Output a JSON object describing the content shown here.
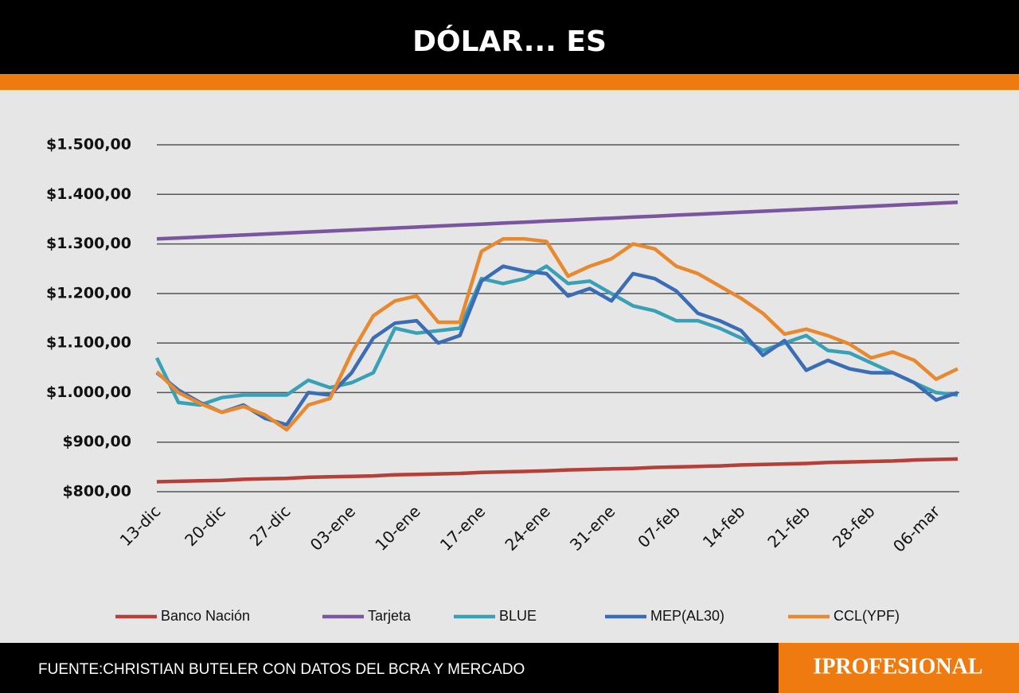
{
  "chart_data": {
    "type": "line",
    "title": "DÓLAR... ES",
    "source": "FUENTE:CHRISTIAN BUTELER CON DATOS DEL BCRA Y MERCADO",
    "brand": "IPROFESIONAL",
    "categories": [
      "13-dic",
      null,
      null,
      "20-dic",
      null,
      null,
      "27-dic",
      null,
      null,
      "03-ene",
      null,
      null,
      "10-ene",
      null,
      null,
      "17-ene",
      null,
      null,
      "24-ene",
      null,
      null,
      "31-ene",
      null,
      null,
      "07-feb",
      null,
      null,
      "14-feb",
      null,
      null,
      "21-feb",
      null,
      null,
      "28-feb",
      null,
      null,
      "06-mar",
      null
    ],
    "ylim": [
      800,
      1500
    ],
    "yticks": [
      {
        "value": 800,
        "label": "$800,00"
      },
      {
        "value": 900,
        "label": "$900,00"
      },
      {
        "value": 1000,
        "label": "$1.000,00"
      },
      {
        "value": 1100,
        "label": "$1.100,00"
      },
      {
        "value": 1200,
        "label": "$1.200,00"
      },
      {
        "value": 1300,
        "label": "$1.300,00"
      },
      {
        "value": 1400,
        "label": "$1.400,00"
      },
      {
        "value": 1500,
        "label": "$1.500,00"
      }
    ],
    "grid": true,
    "series": [
      {
        "name": "Banco Nación",
        "color": "#b5403a",
        "values": [
          820,
          821,
          822,
          823,
          825,
          826,
          827,
          829,
          830,
          831,
          832,
          834,
          835,
          836,
          837,
          839,
          840,
          841,
          842,
          844,
          845,
          846,
          847,
          849,
          850,
          851,
          852,
          854,
          855,
          856,
          857,
          859,
          860,
          861,
          862,
          864,
          865,
          866
        ]
      },
      {
        "name": "Tarjeta",
        "color": "#7b559f",
        "values": [
          1310,
          1312,
          1314,
          1316,
          1318,
          1320,
          1322,
          1324,
          1326,
          1328,
          1330,
          1332,
          1334,
          1336,
          1338,
          1340,
          1342,
          1344,
          1346,
          1348,
          1350,
          1352,
          1354,
          1356,
          1358,
          1360,
          1362,
          1364,
          1366,
          1368,
          1370,
          1372,
          1374,
          1376,
          1378,
          1380,
          1382,
          1384
        ]
      },
      {
        "name": "BLUE",
        "color": "#3aa0b5",
        "values": [
          1070,
          980,
          975,
          990,
          995,
          995,
          995,
          1025,
          1010,
          1020,
          1040,
          1130,
          1120,
          1125,
          1130,
          1230,
          1220,
          1230,
          1255,
          1220,
          1225,
          1200,
          1175,
          1165,
          1145,
          1145,
          1130,
          1110,
          1085,
          1100,
          1115,
          1085,
          1080,
          1060,
          1040,
          1020,
          1000,
          995
        ]
      },
      {
        "name": "MEP(AL30)",
        "color": "#3a6db5",
        "values": [
          1040,
          1005,
          980,
          960,
          975,
          948,
          935,
          1000,
          995,
          1040,
          1110,
          1140,
          1145,
          1100,
          1115,
          1225,
          1255,
          1245,
          1240,
          1195,
          1210,
          1185,
          1240,
          1230,
          1205,
          1160,
          1145,
          1125,
          1075,
          1105,
          1045,
          1065,
          1048,
          1040,
          1040,
          1020,
          985,
          1000
        ]
      },
      {
        "name": "CCL(YPF)",
        "color": "#e8892f",
        "values": [
          1042,
          1000,
          978,
          960,
          972,
          955,
          925,
          975,
          988,
          1080,
          1155,
          1185,
          1195,
          1142,
          1142,
          1285,
          1310,
          1310,
          1305,
          1235,
          1255,
          1270,
          1300,
          1290,
          1255,
          1240,
          1215,
          1190,
          1160,
          1118,
          1128,
          1115,
          1098,
          1070,
          1082,
          1065,
          1027,
          1048
        ]
      }
    ]
  }
}
